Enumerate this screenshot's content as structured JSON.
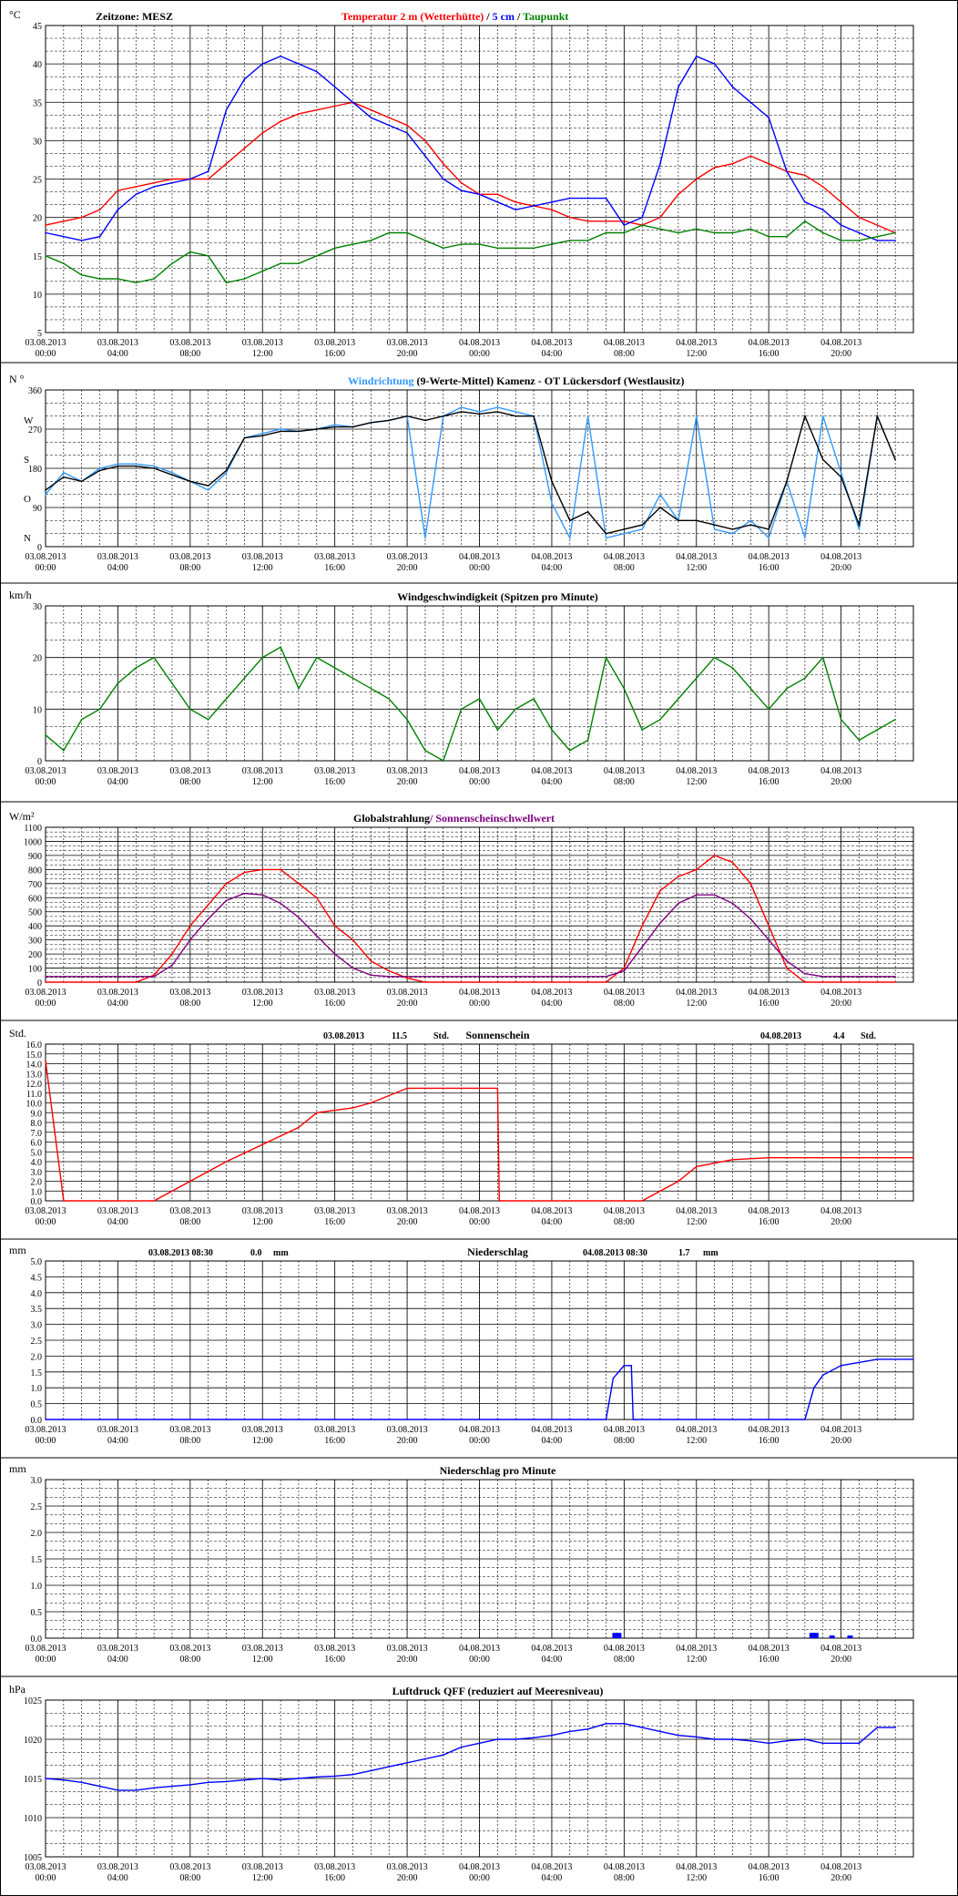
{
  "x_ticks": [
    "03.08.2013 00:00",
    "03.08.2013 04:00",
    "03.08.2013 08:00",
    "03.08.2013 12:00",
    "03.08.2013 16:00",
    "03.08.2013 20:00",
    "04.08.2013 00:00",
    "04.08.2013 04:00",
    "04.08.2013 08:00",
    "04.08.2013 12:00",
    "04.08.2013 16:00",
    "04.08.2013 20:00"
  ],
  "colors": {
    "frame": "#000000",
    "grid": "#000000",
    "red": "#ff0000",
    "blue": "#0000ff",
    "lightblue": "#3399ff",
    "green": "#008000",
    "purple": "#800080",
    "black": "#000000"
  },
  "chart_data": [
    {
      "id": "temperature",
      "type": "line",
      "unit": "°C",
      "timezone_label": "Zeitzone: MESZ",
      "title_parts": [
        {
          "text": "Temperatur 2 m (Wetterhütte)",
          "color": "#ff0000"
        },
        {
          "text": " / ",
          "color": "#000000"
        },
        {
          "text": "5 cm",
          "color": "#0000ff"
        },
        {
          "text": " / ",
          "color": "#000000"
        },
        {
          "text": "Taupunkt",
          "color": "#008000"
        }
      ],
      "ylim": [
        5,
        45
      ],
      "y_ticks": [
        "5",
        "10",
        "15",
        "20",
        "25",
        "30",
        "35",
        "40",
        "45"
      ],
      "x_hours": [
        0,
        1,
        2,
        3,
        4,
        5,
        6,
        7,
        8,
        9,
        10,
        11,
        12,
        13,
        14,
        15,
        16,
        17,
        18,
        19,
        20,
        21,
        22,
        23,
        24,
        25,
        26,
        27,
        28,
        29,
        30,
        31,
        32,
        33,
        34,
        35,
        36,
        37,
        38,
        39,
        40,
        41,
        42,
        43,
        44,
        45,
        46,
        47
      ],
      "series": [
        {
          "name": "Temperatur 2 m (Wetterhütte)",
          "color": "#ff0000",
          "values": [
            19,
            19.5,
            20,
            21,
            23.5,
            24,
            24.5,
            25,
            25,
            25,
            27,
            29,
            31,
            32.5,
            33.5,
            34,
            34.5,
            35,
            34,
            33,
            32,
            30,
            27,
            24.5,
            23,
            23,
            22,
            21.5,
            21,
            20,
            19.5,
            19.5,
            19.5,
            19,
            20,
            23,
            25,
            26.5,
            27,
            28,
            27,
            26,
            25.5,
            24,
            22,
            20,
            19,
            18
          ]
        },
        {
          "name": "5 cm",
          "color": "#0000ff",
          "values": [
            18,
            17.5,
            17,
            17.5,
            21,
            23,
            24,
            24.5,
            25,
            26,
            34,
            38,
            40,
            41,
            40,
            39,
            37,
            35,
            33,
            32,
            31,
            28,
            25,
            23.5,
            23,
            22,
            21,
            21.5,
            22,
            22.5,
            22.5,
            22.5,
            19,
            20,
            27,
            37,
            41,
            40,
            37,
            35,
            33,
            26,
            22,
            21,
            19,
            18,
            17,
            17
          ]
        },
        {
          "name": "Taupunkt",
          "color": "#008000",
          "values": [
            15,
            14,
            12.5,
            12,
            12,
            11.5,
            12,
            14,
            15.5,
            15,
            11.5,
            12,
            13,
            14,
            14,
            15,
            16,
            16.5,
            17,
            18,
            18,
            17,
            16,
            16.5,
            16.5,
            16,
            16,
            16,
            16.5,
            17,
            17,
            18,
            18,
            19,
            18.5,
            18,
            18.5,
            18,
            18,
            18.5,
            17.5,
            17.5,
            19.5,
            18,
            17,
            17,
            17.5,
            18
          ]
        }
      ]
    },
    {
      "id": "wind_direction",
      "type": "line",
      "unit": "N °",
      "title_parts": [
        {
          "text": "Windrichtung",
          "color": "#3399ff"
        },
        {
          "text": " (9-Werte-Mittel)",
          "color": "#000000"
        },
        {
          "text": "       Kamenz - OT Lückersdorf (Westlausitz)",
          "color": "#000000"
        }
      ],
      "ylim": [
        0,
        360
      ],
      "y_ticks": [
        "0",
        "90",
        "180",
        "270",
        "360"
      ],
      "compass_labels": [
        "N",
        "O",
        "S",
        "W",
        "N °"
      ],
      "x_hours": [
        0,
        1,
        2,
        3,
        4,
        5,
        6,
        7,
        8,
        9,
        10,
        11,
        12,
        13,
        14,
        15,
        16,
        17,
        18,
        19,
        20,
        21,
        22,
        23,
        24,
        25,
        26,
        27,
        28,
        29,
        30,
        31,
        32,
        33,
        34,
        35,
        36,
        37,
        38,
        39,
        40,
        41,
        42,
        43,
        44,
        45,
        46,
        47
      ],
      "series": [
        {
          "name": "Windrichtung",
          "color": "#3399ff",
          "values": [
            120,
            170,
            150,
            180,
            190,
            190,
            185,
            170,
            150,
            130,
            170,
            250,
            260,
            270,
            265,
            270,
            280,
            275,
            285,
            290,
            300,
            20,
            300,
            320,
            310,
            320,
            310,
            300,
            100,
            20,
            300,
            20,
            30,
            40,
            120,
            60,
            300,
            40,
            30,
            60,
            20,
            150,
            20,
            300,
            170,
            40,
            300,
            200
          ]
        },
        {
          "name": "9-Werte-Mittel",
          "color": "#000000",
          "values": [
            130,
            160,
            150,
            175,
            185,
            185,
            180,
            165,
            150,
            140,
            175,
            250,
            255,
            265,
            265,
            270,
            275,
            275,
            285,
            290,
            300,
            290,
            300,
            310,
            305,
            310,
            300,
            300,
            150,
            60,
            80,
            30,
            40,
            50,
            90,
            60,
            60,
            50,
            40,
            50,
            40,
            150,
            300,
            200,
            160,
            50,
            300,
            200
          ]
        }
      ]
    },
    {
      "id": "wind_speed",
      "type": "line",
      "unit": "km/h",
      "title": "Windgeschwindigkeit (Spitzen pro Minute)",
      "ylim": [
        0,
        30
      ],
      "y_ticks": [
        "0",
        "10",
        "20",
        "30"
      ],
      "x_hours": [
        0,
        1,
        2,
        3,
        4,
        5,
        6,
        7,
        8,
        9,
        10,
        11,
        12,
        13,
        14,
        15,
        16,
        17,
        18,
        19,
        20,
        21,
        22,
        23,
        24,
        25,
        26,
        27,
        28,
        29,
        30,
        31,
        32,
        33,
        34,
        35,
        36,
        37,
        38,
        39,
        40,
        41,
        42,
        43,
        44,
        45,
        46,
        47
      ],
      "series": [
        {
          "name": "Windgeschwindigkeit",
          "color": "#008000",
          "values": [
            5,
            2,
            8,
            10,
            15,
            18,
            20,
            15,
            10,
            8,
            12,
            16,
            20,
            22,
            14,
            20,
            18,
            16,
            14,
            12,
            8,
            2,
            0,
            10,
            12,
            6,
            10,
            12,
            6,
            2,
            4,
            20,
            14,
            6,
            8,
            12,
            16,
            20,
            18,
            14,
            10,
            14,
            16,
            20,
            8,
            4,
            6,
            8
          ]
        }
      ]
    },
    {
      "id": "global_radiation",
      "type": "line",
      "unit": "W/m²",
      "title_parts": [
        {
          "text": "Globalstrahlung",
          "color": "#000000"
        },
        {
          "text": "/ Sonnenscheinschwellwert",
          "color": "#800080"
        }
      ],
      "ylim": [
        0,
        1100
      ],
      "y_ticks": [
        "0",
        "100",
        "200",
        "300",
        "400",
        "500",
        "600",
        "700",
        "800",
        "900",
        "1000",
        "1100"
      ],
      "x_hours": [
        0,
        1,
        2,
        3,
        4,
        5,
        6,
        7,
        8,
        9,
        10,
        11,
        12,
        13,
        14,
        15,
        16,
        17,
        18,
        19,
        20,
        21,
        22,
        23,
        24,
        25,
        26,
        27,
        28,
        29,
        30,
        31,
        32,
        33,
        34,
        35,
        36,
        37,
        38,
        39,
        40,
        41,
        42,
        43,
        44,
        45,
        46,
        47
      ],
      "series": [
        {
          "name": "Globalstrahlung",
          "color": "#ff0000",
          "values": [
            0,
            0,
            0,
            0,
            0,
            0,
            50,
            200,
            400,
            550,
            700,
            780,
            800,
            800,
            700,
            600,
            400,
            300,
            150,
            80,
            30,
            0,
            0,
            0,
            0,
            0,
            0,
            0,
            0,
            0,
            0,
            0,
            100,
            400,
            650,
            750,
            800,
            900,
            850,
            700,
            400,
            100,
            0,
            0,
            0,
            0,
            0,
            0
          ]
        },
        {
          "name": "Sonnenscheinschwellwert",
          "color": "#800080",
          "values": [
            40,
            40,
            40,
            40,
            40,
            40,
            40,
            120,
            300,
            450,
            580,
            630,
            620,
            560,
            460,
            330,
            200,
            100,
            50,
            40,
            40,
            40,
            40,
            40,
            40,
            40,
            40,
            40,
            40,
            40,
            40,
            40,
            80,
            250,
            420,
            560,
            620,
            620,
            560,
            450,
            300,
            150,
            60,
            40,
            40,
            40,
            40,
            40
          ]
        }
      ]
    },
    {
      "id": "sunshine",
      "type": "line",
      "unit": "Std.",
      "title": "Sonnenschein",
      "annotations": [
        {
          "date": "03.08.2013",
          "value": "11.5",
          "unit": "Std."
        },
        {
          "date": "04.08.2013",
          "value": "4.4",
          "unit": "Std."
        }
      ],
      "ylim": [
        0,
        16
      ],
      "y_ticks": [
        "0.0",
        "1.0",
        "2.0",
        "3.0",
        "4.0",
        "5.0",
        "6.0",
        "7.0",
        "8.0",
        "9.0",
        "10.0",
        "11.0",
        "12.0",
        "13.0",
        "14.0",
        "15.0",
        "16.0"
      ],
      "x_hours": [
        0,
        1,
        6,
        10,
        14,
        15,
        17,
        18,
        20,
        24,
        25,
        25.1,
        33,
        35,
        36,
        38,
        40,
        48
      ],
      "series": [
        {
          "name": "Sonnenschein",
          "color": "#ff0000",
          "values": [
            14.3,
            0,
            0,
            4,
            7.5,
            9,
            9.5,
            10,
            11.5,
            11.5,
            11.5,
            0,
            0,
            2,
            3.5,
            4.2,
            4.4,
            4.4
          ]
        }
      ]
    },
    {
      "id": "precipitation",
      "type": "line",
      "unit": "mm",
      "title": "Niederschlag",
      "annotations": [
        {
          "date": "03.08.2013 08:30",
          "value": "0.0",
          "unit": "mm"
        },
        {
          "date": "04.08.2013 08:30",
          "value": "1.7",
          "unit": "mm"
        }
      ],
      "ylim": [
        0,
        5
      ],
      "y_ticks": [
        "0.0",
        "0.5",
        "1.0",
        "1.5",
        "2.0",
        "2.5",
        "3.0",
        "3.5",
        "4.0",
        "4.5",
        "5.0"
      ],
      "x_hours": [
        0,
        31,
        31.4,
        32,
        32.4,
        32.5,
        32.6,
        42,
        42.5,
        43,
        44,
        46,
        48
      ],
      "series": [
        {
          "name": "Niederschlag",
          "color": "#0000ff",
          "values": [
            0,
            0,
            1.3,
            1.7,
            1.7,
            0,
            0,
            0,
            1,
            1.4,
            1.7,
            1.9,
            1.9
          ]
        }
      ]
    },
    {
      "id": "precipitation_per_minute",
      "type": "bar",
      "unit": "mm",
      "title": "Niederschlag pro Minute",
      "ylim": [
        0,
        3
      ],
      "y_ticks": [
        "0.0",
        "0.5",
        "1.0",
        "1.5",
        "2.0",
        "2.5",
        "3.0"
      ],
      "x_hours": [
        31.5,
        31.7,
        42.4,
        42.6,
        43.5,
        44.5
      ],
      "series": [
        {
          "name": "Niederschlag pro Minute",
          "color": "#0000ff",
          "values": [
            0.1,
            0.1,
            0.1,
            0.1,
            0.05,
            0.05
          ]
        }
      ]
    },
    {
      "id": "pressure",
      "type": "line",
      "unit": "hPa",
      "title": "Luftdruck QFF (reduziert auf Meeresniveau)",
      "ylim": [
        1005,
        1025
      ],
      "y_ticks": [
        "1005",
        "1010",
        "1015",
        "1020",
        "1025"
      ],
      "x_hours": [
        0,
        1,
        2,
        3,
        4,
        5,
        6,
        7,
        8,
        9,
        10,
        11,
        12,
        13,
        14,
        15,
        16,
        17,
        18,
        19,
        20,
        21,
        22,
        23,
        24,
        25,
        26,
        27,
        28,
        29,
        30,
        31,
        32,
        33,
        34,
        35,
        36,
        37,
        38,
        39,
        40,
        41,
        42,
        43,
        44,
        45,
        46,
        47
      ],
      "series": [
        {
          "name": "Luftdruck",
          "color": "#0000ff",
          "values": [
            1015,
            1014.8,
            1014.5,
            1014,
            1013.5,
            1013.5,
            1013.8,
            1014,
            1014.2,
            1014.5,
            1014.6,
            1014.8,
            1015,
            1014.8,
            1015,
            1015.2,
            1015.3,
            1015.5,
            1016,
            1016.5,
            1017,
            1017.5,
            1018,
            1019,
            1019.5,
            1020,
            1020,
            1020.2,
            1020.5,
            1021,
            1021.3,
            1022,
            1022,
            1021.5,
            1021,
            1020.5,
            1020.3,
            1020,
            1020,
            1019.8,
            1019.5,
            1019.8,
            1020,
            1019.5,
            1019.5,
            1019.5,
            1021.5,
            1021.5
          ]
        }
      ]
    }
  ]
}
